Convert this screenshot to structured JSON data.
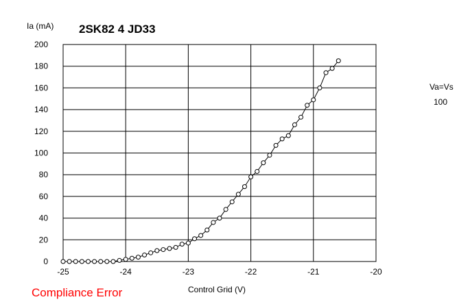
{
  "chart_data": {
    "type": "line",
    "title": "2SK82 4 JD33",
    "xlabel": "Control Grid (V)",
    "ylabel": "Ia (mA)",
    "xlim": [
      -25,
      -20
    ],
    "ylim": [
      0,
      200
    ],
    "grid": true,
    "x_ticks": [
      -25,
      -24,
      -23,
      -22,
      -21,
      -20
    ],
    "x_tick_labels": [
      "-25",
      "-24",
      "-23",
      "-22",
      "-21",
      "-20"
    ],
    "y_ticks": [
      0,
      20,
      40,
      60,
      80,
      100,
      120,
      140,
      160,
      180,
      200
    ],
    "y_tick_labels": [
      "0",
      "20",
      "40",
      "60",
      "80",
      "100",
      "120",
      "140",
      "160",
      "180",
      "200"
    ],
    "series": [
      {
        "marker": "circle",
        "x": [
          -25.0,
          -24.9,
          -24.8,
          -24.7,
          -24.6,
          -24.5,
          -24.4,
          -24.3,
          -24.2,
          -24.1,
          -24.0,
          -23.9,
          -23.8,
          -23.7,
          -23.6,
          -23.5,
          -23.4,
          -23.3,
          -23.2,
          -23.1,
          -23.0,
          -22.9,
          -22.8,
          -22.7,
          -22.6,
          -22.5,
          -22.4,
          -22.3,
          -22.2,
          -22.1,
          -22.0,
          -21.9,
          -21.8,
          -21.7,
          -21.6,
          -21.5,
          -21.4,
          -21.3,
          -21.2,
          -21.1,
          -21.0,
          -20.9,
          -20.8,
          -20.7,
          -20.6
        ],
        "y": [
          0,
          0,
          0,
          0,
          0,
          0,
          0,
          0,
          0,
          1,
          2,
          3,
          4,
          6,
          8,
          10,
          11,
          12,
          13,
          16,
          17,
          21,
          24,
          29,
          36,
          40,
          48,
          55,
          62,
          69,
          78,
          83,
          91,
          98,
          107,
          113,
          116,
          126,
          133,
          144,
          149,
          160,
          174,
          178,
          185
        ]
      }
    ]
  },
  "side_label": "Va=Vs",
  "side_value": "100",
  "error_text": "Compliance Error"
}
